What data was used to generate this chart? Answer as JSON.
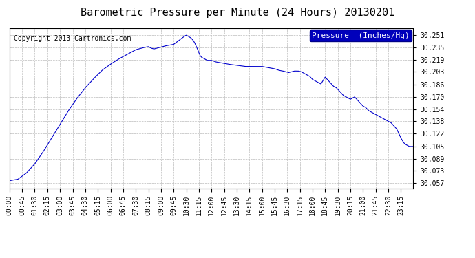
{
  "title": "Barometric Pressure per Minute (24 Hours) 20130201",
  "copyright": "Copyright 2013 Cartronics.com",
  "legend_label": "Pressure  (Inches/Hg)",
  "line_color": "#0000cc",
  "background_color": "#ffffff",
  "grid_color": "#bbbbbb",
  "ylim": [
    30.05,
    30.26
  ],
  "yticks": [
    30.057,
    30.073,
    30.089,
    30.105,
    30.122,
    30.138,
    30.154,
    30.17,
    30.186,
    30.203,
    30.219,
    30.235,
    30.251
  ],
  "xtick_labels": [
    "00:00",
    "00:45",
    "01:30",
    "02:15",
    "03:00",
    "03:45",
    "04:30",
    "05:15",
    "06:00",
    "06:45",
    "07:30",
    "08:15",
    "09:00",
    "09:45",
    "10:30",
    "11:15",
    "12:00",
    "12:45",
    "13:30",
    "14:15",
    "15:00",
    "15:45",
    "16:30",
    "17:15",
    "18:00",
    "18:45",
    "19:30",
    "20:15",
    "21:00",
    "21:45",
    "22:30",
    "23:15"
  ],
  "title_fontsize": 11,
  "copyright_fontsize": 7,
  "legend_fontsize": 8,
  "tick_fontsize": 7,
  "keypoints": [
    [
      0,
      30.06
    ],
    [
      30,
      30.062
    ],
    [
      60,
      30.07
    ],
    [
      90,
      30.082
    ],
    [
      120,
      30.098
    ],
    [
      150,
      30.116
    ],
    [
      180,
      30.134
    ],
    [
      210,
      30.152
    ],
    [
      240,
      30.168
    ],
    [
      270,
      30.182
    ],
    [
      300,
      30.194
    ],
    [
      330,
      30.205
    ],
    [
      360,
      30.213
    ],
    [
      390,
      30.22
    ],
    [
      420,
      30.226
    ],
    [
      450,
      30.232
    ],
    [
      480,
      30.235
    ],
    [
      495,
      30.236
    ],
    [
      505,
      30.234
    ],
    [
      515,
      30.233
    ],
    [
      525,
      30.234
    ],
    [
      535,
      30.235
    ],
    [
      545,
      30.236
    ],
    [
      555,
      30.237
    ],
    [
      570,
      30.238
    ],
    [
      585,
      30.239
    ],
    [
      600,
      30.243
    ],
    [
      610,
      30.246
    ],
    [
      618,
      30.248
    ],
    [
      625,
      30.25
    ],
    [
      630,
      30.251
    ],
    [
      635,
      30.25
    ],
    [
      640,
      30.249
    ],
    [
      648,
      30.247
    ],
    [
      655,
      30.244
    ],
    [
      660,
      30.241
    ],
    [
      665,
      30.237
    ],
    [
      670,
      30.233
    ],
    [
      675,
      30.228
    ],
    [
      680,
      30.224
    ],
    [
      685,
      30.222
    ],
    [
      690,
      30.221
    ],
    [
      695,
      30.22
    ],
    [
      700,
      30.219
    ],
    [
      705,
      30.218
    ],
    [
      720,
      30.218
    ],
    [
      735,
      30.216
    ],
    [
      750,
      30.215
    ],
    [
      765,
      30.214
    ],
    [
      780,
      30.213
    ],
    [
      800,
      30.212
    ],
    [
      820,
      30.211
    ],
    [
      840,
      30.21
    ],
    [
      860,
      30.21
    ],
    [
      880,
      30.21
    ],
    [
      900,
      30.21
    ],
    [
      915,
      30.209
    ],
    [
      930,
      30.208
    ],
    [
      945,
      30.207
    ],
    [
      960,
      30.205
    ],
    [
      975,
      30.204
    ],
    [
      985,
      30.203
    ],
    [
      995,
      30.202
    ],
    [
      1005,
      30.203
    ],
    [
      1015,
      30.204
    ],
    [
      1020,
      30.204
    ],
    [
      1030,
      30.204
    ],
    [
      1040,
      30.203
    ],
    [
      1050,
      30.201
    ],
    [
      1060,
      30.199
    ],
    [
      1070,
      30.197
    ],
    [
      1075,
      30.195
    ],
    [
      1080,
      30.193
    ],
    [
      1085,
      30.192
    ],
    [
      1090,
      30.191
    ],
    [
      1095,
      30.19
    ],
    [
      1100,
      30.189
    ],
    [
      1105,
      30.188
    ],
    [
      1110,
      30.187
    ],
    [
      1115,
      30.19
    ],
    [
      1120,
      30.193
    ],
    [
      1125,
      30.196
    ],
    [
      1130,
      30.194
    ],
    [
      1135,
      30.192
    ],
    [
      1140,
      30.19
    ],
    [
      1145,
      30.188
    ],
    [
      1150,
      30.186
    ],
    [
      1155,
      30.184
    ],
    [
      1160,
      30.183
    ],
    [
      1165,
      30.182
    ],
    [
      1170,
      30.18
    ],
    [
      1175,
      30.178
    ],
    [
      1180,
      30.176
    ],
    [
      1185,
      30.174
    ],
    [
      1190,
      30.172
    ],
    [
      1200,
      30.17
    ],
    [
      1210,
      30.168
    ],
    [
      1215,
      30.167
    ],
    [
      1220,
      30.168
    ],
    [
      1225,
      30.169
    ],
    [
      1230,
      30.17
    ],
    [
      1235,
      30.168
    ],
    [
      1240,
      30.166
    ],
    [
      1245,
      30.164
    ],
    [
      1250,
      30.162
    ],
    [
      1255,
      30.16
    ],
    [
      1260,
      30.158
    ],
    [
      1270,
      30.156
    ],
    [
      1275,
      30.154
    ],
    [
      1280,
      30.152
    ],
    [
      1290,
      30.15
    ],
    [
      1300,
      30.148
    ],
    [
      1310,
      30.146
    ],
    [
      1320,
      30.144
    ],
    [
      1330,
      30.142
    ],
    [
      1340,
      30.14
    ],
    [
      1350,
      30.138
    ],
    [
      1360,
      30.136
    ],
    [
      1365,
      30.134
    ],
    [
      1370,
      30.132
    ],
    [
      1375,
      30.13
    ],
    [
      1380,
      30.128
    ],
    [
      1385,
      30.124
    ],
    [
      1390,
      30.12
    ],
    [
      1395,
      30.116
    ],
    [
      1400,
      30.113
    ],
    [
      1405,
      30.11
    ],
    [
      1410,
      30.108
    ],
    [
      1415,
      30.107
    ],
    [
      1420,
      30.106
    ],
    [
      1425,
      30.105
    ],
    [
      1430,
      30.105
    ],
    [
      1435,
      30.105
    ],
    [
      1439,
      30.105
    ]
  ]
}
